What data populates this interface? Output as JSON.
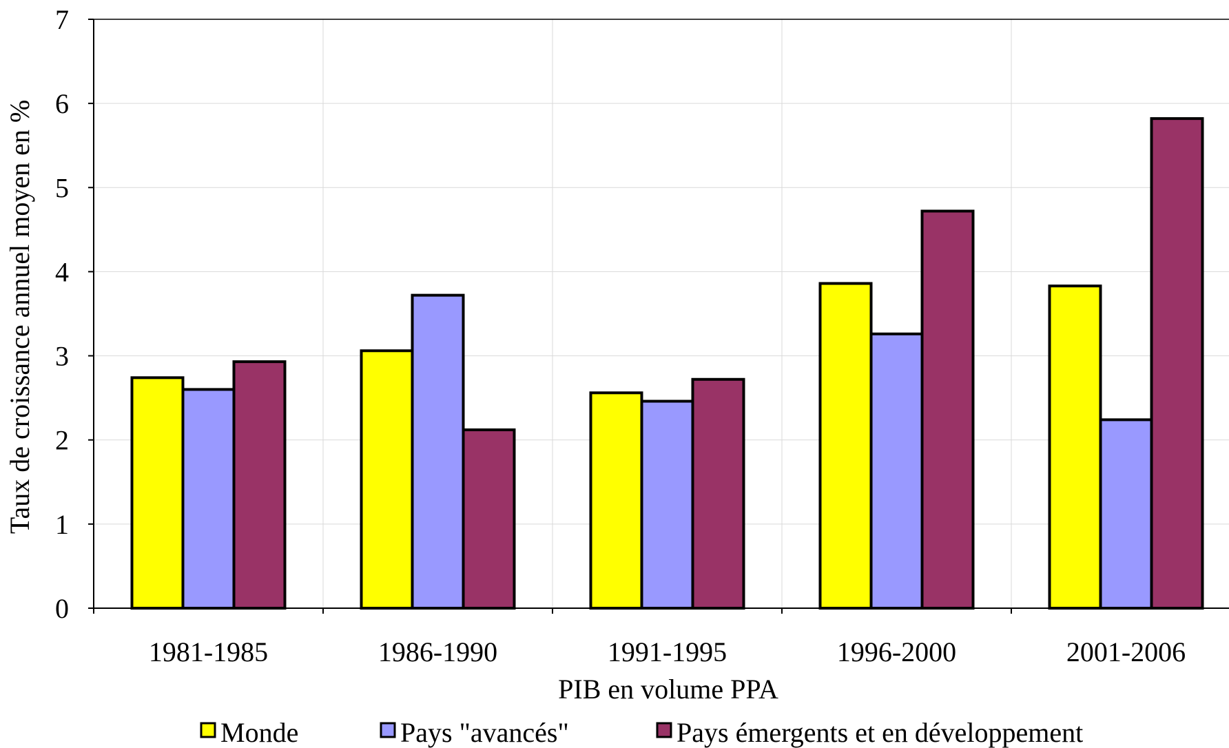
{
  "chart_data": {
    "type": "bar",
    "xlabel": "PIB en volume PPA",
    "ylabel": "Taux de croissance annuel moyen en %",
    "ylim": [
      0,
      7
    ],
    "yticks": [
      0,
      1,
      2,
      3,
      4,
      5,
      6,
      7
    ],
    "grid": true,
    "legend_position": "bottom",
    "categories": [
      "1981-1985",
      "1986-1990",
      "1991-1995",
      "1996-2000",
      "2001-2006"
    ],
    "series": [
      {
        "name": "Monde",
        "color": "#ffff00",
        "values": [
          2.74,
          3.06,
          2.56,
          3.86,
          3.83
        ]
      },
      {
        "name": "Pays \"avancés\"",
        "color": "#9999ff",
        "values": [
          2.6,
          3.72,
          2.46,
          3.26,
          2.24
        ]
      },
      {
        "name": "Pays émergents et en développement",
        "color": "#993366",
        "values": [
          2.93,
          2.12,
          2.72,
          4.72,
          5.82
        ]
      }
    ]
  }
}
